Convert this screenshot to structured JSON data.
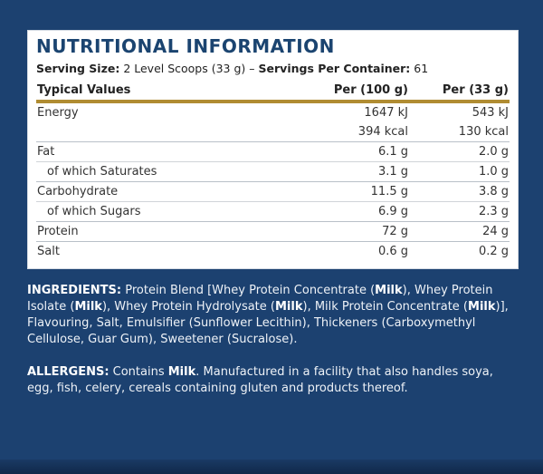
{
  "panel": {
    "title": "NUTRITIONAL INFORMATION",
    "serving_size_label": "Serving Size:",
    "serving_size_value": "2 Level Scoops (33 g)",
    "serving_separator": "–",
    "servings_label": "Servings Per Container:",
    "servings_value": "61",
    "headers": [
      "Typical Values",
      "Per (100 g)",
      "Per (33 g)"
    ],
    "rows": [
      {
        "name": "Energy",
        "per100": "1647 kJ",
        "perServing": "543 kJ"
      },
      {
        "name": "",
        "per100": "394 kcal",
        "perServing": "130 kcal"
      },
      {
        "name": "Fat",
        "per100": "6.1 g",
        "perServing": "2.0 g"
      },
      {
        "name": "of which Saturates",
        "per100": "3.1 g",
        "perServing": "1.0 g"
      },
      {
        "name": "Carbohydrate",
        "per100": "11.5 g",
        "perServing": "3.8 g"
      },
      {
        "name": "of which Sugars",
        "per100": "6.9 g",
        "perServing": "2.3 g"
      },
      {
        "name": "Protein",
        "per100": "72 g",
        "perServing": "24 g"
      },
      {
        "name": "Salt",
        "per100": "0.6 g",
        "perServing": "0.2 g"
      }
    ]
  },
  "ingredients": {
    "label": "INGREDIENTS:",
    "parts": [
      " Protein Blend [Whey Protein Concentrate (",
      "Milk",
      "), Whey Protein Isolate (",
      "Milk",
      "), Whey Protein Hydrolysate (",
      "Milk",
      "), Milk Protein Concentrate (",
      "Milk",
      ")], Flavouring, Salt, Emulsifier (Sunflower Lecithin), Thickeners (Carboxymethyl Cellulose, Guar Gum), Sweetener (Sucralose)."
    ]
  },
  "allergens": {
    "label": "ALLERGENS:",
    "parts": [
      " Contains ",
      "Milk",
      ". Manufactured in a facility that also handles soya, egg, fish, celery, cereals containing gluten and products thereof."
    ]
  },
  "colors": {
    "background": "#1c4170",
    "title": "#1b4470",
    "header_rule": "#b08c32"
  }
}
